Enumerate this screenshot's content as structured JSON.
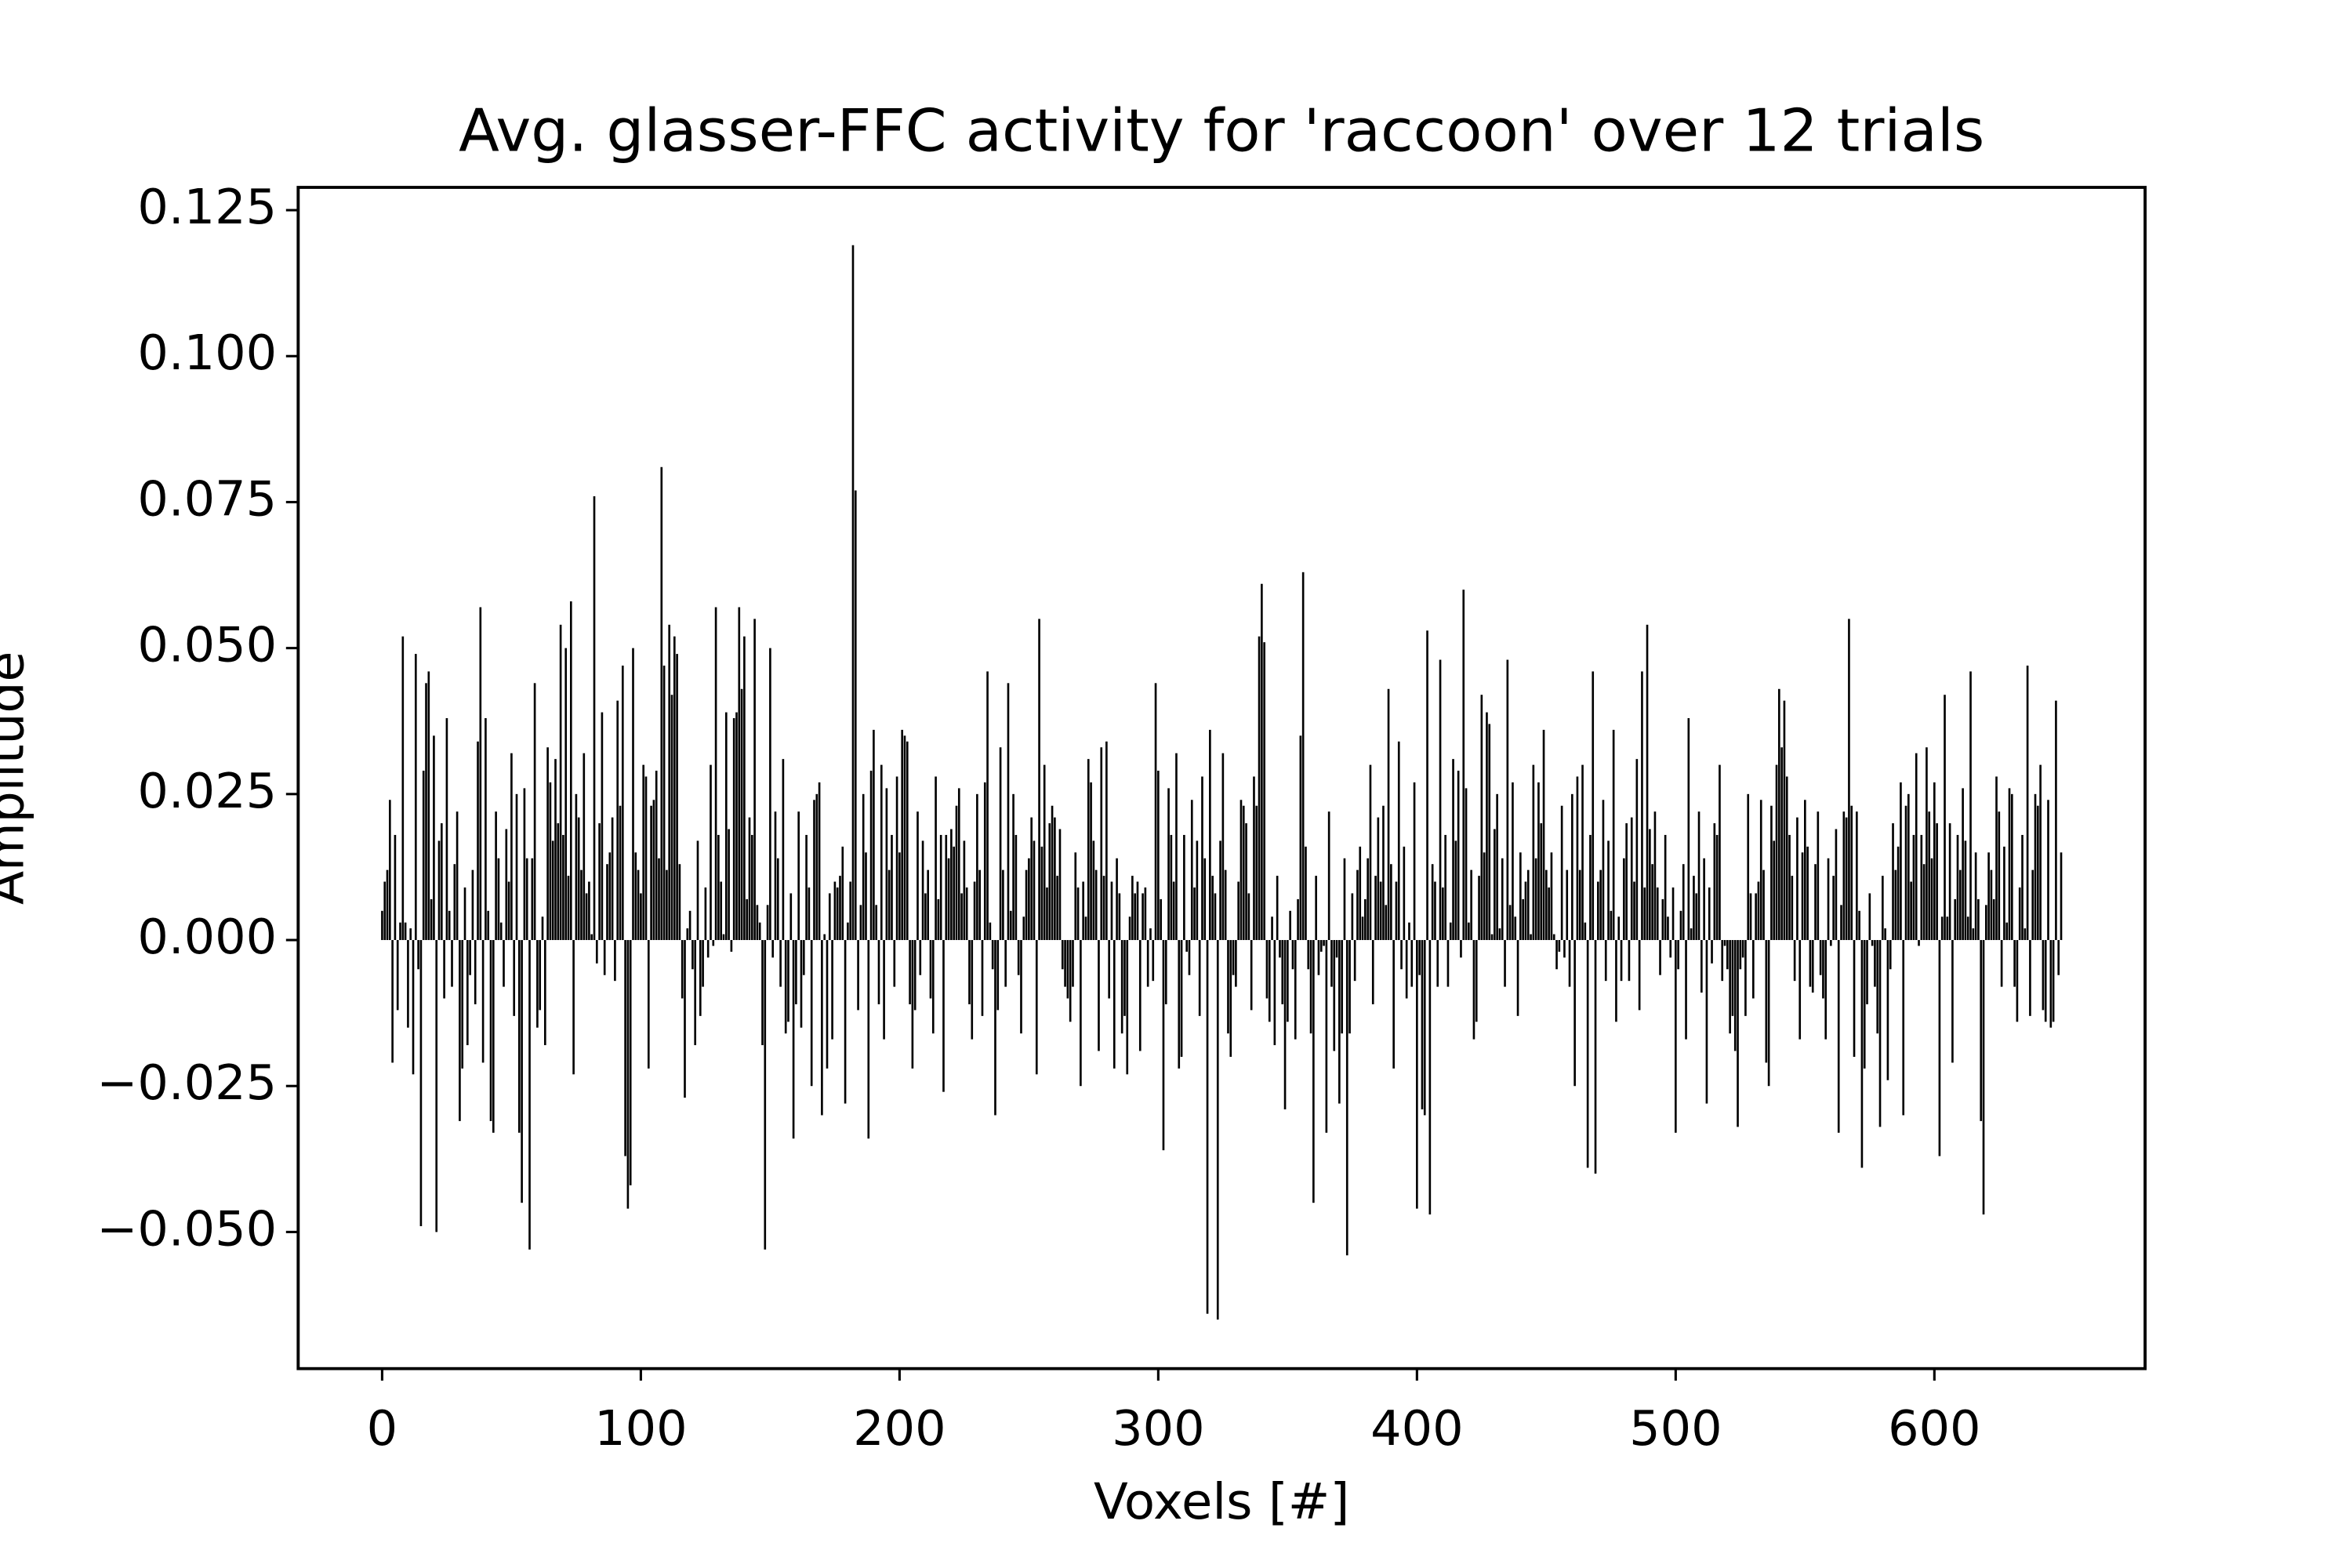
{
  "chart_data": {
    "type": "bar",
    "title": "Avg. glasser-FFC activity for 'raccoon' over 12 trials",
    "xlabel": "Voxels [#]",
    "ylabel": "Amplitude",
    "color": "#000000",
    "xlim": [
      -32.45,
      681.45
    ],
    "ylim": [
      -0.0734,
      0.1289
    ],
    "xticks": [
      0,
      100,
      200,
      300,
      400,
      500,
      600
    ],
    "yticks": [
      {
        "value": -0.05,
        "label": "−0.050"
      },
      {
        "value": -0.025,
        "label": "−0.025"
      },
      {
        "value": 0,
        "label": "0.000"
      },
      {
        "value": 0.025,
        "label": "0.025"
      },
      {
        "value": 0.05,
        "label": "0.050"
      },
      {
        "value": 0.075,
        "label": "0.075"
      },
      {
        "value": 0.1,
        "label": "0.100"
      },
      {
        "value": 0.125,
        "label": "0.125"
      }
    ],
    "x": [
      0,
      1,
      2,
      3,
      4,
      5,
      6,
      7,
      8,
      9,
      10,
      11,
      12,
      13,
      14,
      15,
      16,
      17,
      18,
      19,
      20,
      21,
      22,
      23,
      24,
      25,
      26,
      27,
      28,
      29,
      30,
      31,
      32,
      33,
      34,
      35,
      36,
      37,
      38,
      39,
      40,
      41,
      42,
      43,
      44,
      45,
      46,
      47,
      48,
      49,
      50,
      51,
      52,
      53,
      54,
      55,
      56,
      57,
      58,
      59,
      60,
      61,
      62,
      63,
      64,
      65,
      66,
      67,
      68,
      69,
      70,
      71,
      72,
      73,
      74,
      75,
      76,
      77,
      78,
      79,
      80,
      81,
      82,
      83,
      84,
      85,
      86,
      87,
      88,
      89,
      90,
      91,
      92,
      93,
      94,
      95,
      96,
      97,
      98,
      99,
      100,
      101,
      102,
      103,
      104,
      105,
      106,
      107,
      108,
      109,
      110,
      111,
      112,
      113,
      114,
      115,
      116,
      117,
      118,
      119,
      120,
      121,
      122,
      123,
      124,
      125,
      126,
      127,
      128,
      129,
      130,
      131,
      132,
      133,
      134,
      135,
      136,
      137,
      138,
      139,
      140,
      141,
      142,
      143,
      144,
      145,
      146,
      147,
      148,
      149,
      150,
      151,
      152,
      153,
      154,
      155,
      156,
      157,
      158,
      159,
      160,
      161,
      162,
      163,
      164,
      165,
      166,
      167,
      168,
      169,
      170,
      171,
      172,
      173,
      174,
      175,
      176,
      177,
      178,
      179,
      180,
      181,
      182,
      183,
      184,
      185,
      186,
      187,
      188,
      189,
      190,
      191,
      192,
      193,
      194,
      195,
      196,
      197,
      198,
      199,
      200,
      201,
      202,
      203,
      204,
      205,
      206,
      207,
      208,
      209,
      210,
      211,
      212,
      213,
      214,
      215,
      216,
      217,
      218,
      219,
      220,
      221,
      222,
      223,
      224,
      225,
      226,
      227,
      228,
      229,
      230,
      231,
      232,
      233,
      234,
      235,
      236,
      237,
      238,
      239,
      240,
      241,
      242,
      243,
      244,
      245,
      246,
      247,
      248,
      249,
      250,
      251,
      252,
      253,
      254,
      255,
      256,
      257,
      258,
      259,
      260,
      261,
      262,
      263,
      264,
      265,
      266,
      267,
      268,
      269,
      270,
      271,
      272,
      273,
      274,
      275,
      276,
      277,
      278,
      279,
      280,
      281,
      282,
      283,
      284,
      285,
      286,
      287,
      288,
      289,
      290,
      291,
      292,
      293,
      294,
      295,
      296,
      297,
      298,
      299,
      300,
      301,
      302,
      303,
      304,
      305,
      306,
      307,
      308,
      309,
      310,
      311,
      312,
      313,
      314,
      315,
      316,
      317,
      318,
      319,
      320,
      321,
      322,
      323,
      324,
      325,
      326,
      327,
      328,
      329,
      330,
      331,
      332,
      333,
      334,
      335,
      336,
      337,
      338,
      339,
      340,
      341,
      342,
      343,
      344,
      345,
      346,
      347,
      348,
      349,
      350,
      351,
      352,
      353,
      354,
      355,
      356,
      357,
      358,
      359,
      360,
      361,
      362,
      363,
      364,
      365,
      366,
      367,
      368,
      369,
      370,
      371,
      372,
      373,
      374,
      375,
      376,
      377,
      378,
      379,
      380,
      381,
      382,
      383,
      384,
      385,
      386,
      387,
      388,
      389,
      390,
      391,
      392,
      393,
      394,
      395,
      396,
      397,
      398,
      399,
      400,
      401,
      402,
      403,
      404,
      405,
      406,
      407,
      408,
      409,
      410,
      411,
      412,
      413,
      414,
      415,
      416,
      417,
      418,
      419,
      420,
      421,
      422,
      423,
      424,
      425,
      426,
      427,
      428,
      429,
      430,
      431,
      432,
      433,
      434,
      435,
      436,
      437,
      438,
      439,
      440,
      441,
      442,
      443,
      444,
      445,
      446,
      447,
      448,
      449,
      450,
      451,
      452,
      453,
      454,
      455,
      456,
      457,
      458,
      459,
      460,
      461,
      462,
      463,
      464,
      465,
      466,
      467,
      468,
      469,
      470,
      471,
      472,
      473,
      474,
      475,
      476,
      477,
      478,
      479,
      480,
      481,
      482,
      483,
      484,
      485,
      486,
      487,
      488,
      489,
      490,
      491,
      492,
      493,
      494,
      495,
      496,
      497,
      498,
      499,
      500,
      501,
      502,
      503,
      504,
      505,
      506,
      507,
      508,
      509,
      510,
      511,
      512,
      513,
      514,
      515,
      516,
      517,
      518,
      519,
      520,
      521,
      522,
      523,
      524,
      525,
      526,
      527,
      528,
      529,
      530,
      531,
      532,
      533,
      534,
      535,
      536,
      537,
      538,
      539,
      540,
      541,
      542,
      543,
      544,
      545,
      546,
      547,
      548,
      549,
      550,
      551,
      552,
      553,
      554,
      555,
      556,
      557,
      558,
      559,
      560,
      561,
      562,
      563,
      564,
      565,
      566,
      567,
      568,
      569,
      570,
      571,
      572,
      573,
      574,
      575,
      576,
      577,
      578,
      579,
      580,
      581,
      582,
      583,
      584,
      585,
      586,
      587,
      588,
      589,
      590,
      591,
      592,
      593,
      594,
      595,
      596,
      597,
      598,
      599,
      600,
      601,
      602,
      603,
      604,
      605,
      606,
      607,
      608,
      609,
      610,
      611,
      612,
      613,
      614,
      615,
      616,
      617,
      618,
      619,
      620,
      621,
      622,
      623,
      624,
      625,
      626,
      627,
      628,
      629,
      630,
      631,
      632,
      633,
      634,
      635,
      636,
      637,
      638,
      639,
      640,
      641,
      642,
      643,
      644,
      645,
      646,
      647,
      648,
      649
    ],
    "values": [
      0.005,
      0.01,
      0.012,
      0.024,
      -0.021,
      0.018,
      -0.012,
      0.003,
      0.052,
      0.003,
      -0.015,
      0.002,
      -0.023,
      0.049,
      -0.005,
      -0.049,
      0.029,
      0.044,
      0.046,
      0.007,
      0.035,
      -0.05,
      0.017,
      0.02,
      -0.01,
      0.038,
      0.005,
      -0.008,
      0.013,
      0.022,
      -0.031,
      -0.022,
      0.009,
      -0.018,
      -0.006,
      0.012,
      -0.011,
      0.034,
      0.057,
      -0.021,
      0.038,
      0.005,
      -0.031,
      -0.033,
      0.022,
      0.014,
      0.003,
      -0.008,
      0.019,
      0.01,
      0.032,
      -0.013,
      0.025,
      -0.033,
      -0.045,
      0.026,
      0.014,
      -0.053,
      0.014,
      0.044,
      -0.015,
      -0.012,
      0.004,
      -0.018,
      0.033,
      0.027,
      0.017,
      0.031,
      0.02,
      0.054,
      0.018,
      0.05,
      0.011,
      0.058,
      -0.023,
      0.025,
      0.021,
      0.012,
      0.032,
      0.008,
      0.01,
      0.001,
      0.076,
      -0.004,
      0.02,
      0.039,
      -0.006,
      0.013,
      0.015,
      0.021,
      -0.007,
      0.041,
      0.023,
      0.047,
      -0.037,
      -0.046,
      -0.042,
      0.05,
      0.015,
      0.012,
      0.008,
      0.03,
      0.028,
      -0.022,
      0.023,
      0.024,
      0.029,
      0.014,
      0.081,
      0.047,
      0.012,
      0.054,
      0.042,
      0.052,
      0.049,
      0.013,
      -0.01,
      -0.027,
      0.002,
      0.005,
      -0.005,
      -0.018,
      0.017,
      -0.013,
      -0.008,
      0.009,
      -0.003,
      0.03,
      -0.001,
      0.057,
      0.018,
      0.01,
      0.001,
      0.039,
      0.019,
      -0.002,
      0.038,
      0.039,
      0.057,
      0.043,
      0.052,
      0.007,
      0.021,
      0.018,
      0.055,
      0.006,
      0.003,
      -0.018,
      -0.053,
      0.006,
      0.05,
      -0.003,
      0.022,
      0.014,
      -0.008,
      0.031,
      -0.016,
      -0.014,
      0.008,
      -0.034,
      -0.011,
      0.022,
      -0.015,
      -0.006,
      0.018,
      0.009,
      -0.025,
      0.024,
      0.025,
      0.027,
      -0.03,
      0.001,
      -0.022,
      0.008,
      -0.017,
      0.01,
      0.009,
      0.011,
      0.016,
      -0.028,
      0.003,
      0.01,
      0.119,
      0.077,
      -0.012,
      0.006,
      0.025,
      0.015,
      -0.034,
      0.029,
      0.036,
      0.006,
      -0.011,
      0.03,
      -0.017,
      0.026,
      0.012,
      0.018,
      -0.008,
      0.028,
      0.015,
      0.036,
      0.035,
      0.034,
      -0.011,
      -0.022,
      -0.012,
      0.022,
      -0.006,
      0.017,
      0.008,
      0.012,
      -0.01,
      -0.016,
      0.028,
      0.007,
      0.018,
      -0.026,
      0.018,
      0.014,
      0.019,
      0.016,
      0.023,
      0.026,
      0.008,
      0.017,
      0.009,
      -0.011,
      -0.017,
      0.01,
      0.025,
      0.012,
      -0.013,
      0.027,
      0.046,
      0.003,
      -0.005,
      -0.03,
      -0.012,
      0.033,
      0.012,
      -0.008,
      0.044,
      0.005,
      0.025,
      0.018,
      -0.006,
      -0.016,
      0.004,
      0.012,
      0.014,
      0.021,
      0.017,
      -0.023,
      0.055,
      0.016,
      0.03,
      0.009,
      0.02,
      0.023,
      0.021,
      0.011,
      0.019,
      -0.005,
      -0.008,
      -0.01,
      -0.014,
      -0.008,
      0.015,
      0.009,
      -0.025,
      0.01,
      0.004,
      0.031,
      0.027,
      0.017,
      0.012,
      -0.019,
      0.033,
      0.011,
      0.034,
      -0.01,
      0.01,
      -0.022,
      0.014,
      0.008,
      -0.016,
      -0.013,
      -0.023,
      0.004,
      0.011,
      0.008,
      0.01,
      -0.019,
      0.008,
      0.009,
      -0.008,
      0.002,
      -0.007,
      0.044,
      0.029,
      0.007,
      -0.036,
      -0.011,
      0.026,
      0.018,
      0.01,
      0.032,
      -0.022,
      -0.02,
      0.018,
      -0.002,
      -0.006,
      0.024,
      0.009,
      0.017,
      -0.013,
      0.028,
      0.014,
      -0.064,
      0.036,
      0.011,
      0.008,
      -0.065,
      0.017,
      0.032,
      0.012,
      -0.016,
      -0.02,
      -0.006,
      -0.008,
      0.01,
      0.024,
      0.023,
      0.02,
      0.008,
      -0.012,
      0.028,
      0.023,
      0.052,
      0.061,
      0.051,
      -0.01,
      -0.014,
      0.004,
      -0.018,
      0.011,
      -0.003,
      -0.011,
      -0.029,
      -0.014,
      0.005,
      -0.005,
      -0.017,
      0.007,
      0.035,
      0.063,
      0.016,
      -0.005,
      -0.016,
      -0.045,
      0.011,
      -0.006,
      -0.002,
      -0.001,
      -0.033,
      0.022,
      -0.008,
      -0.019,
      -0.003,
      -0.028,
      -0.016,
      0.014,
      -0.054,
      -0.016,
      0.008,
      -0.007,
      0.012,
      0.016,
      0.004,
      0.007,
      0.014,
      0.03,
      -0.011,
      0.011,
      0.021,
      0.01,
      0.023,
      0.006,
      0.043,
      0.013,
      -0.022,
      0.01,
      0.034,
      -0.005,
      0.016,
      -0.01,
      0.003,
      -0.008,
      0.027,
      -0.046,
      -0.006,
      -0.029,
      -0.03,
      0.053,
      -0.047,
      0.013,
      0.01,
      -0.008,
      0.048,
      0.009,
      0.018,
      -0.008,
      0.003,
      0.031,
      0.017,
      0.029,
      -0.003,
      0.06,
      0.026,
      0.003,
      0.012,
      -0.017,
      -0.014,
      0.011,
      0.042,
      0.015,
      0.039,
      0.037,
      0.001,
      0.019,
      0.025,
      0.002,
      0.014,
      -0.008,
      0.048,
      0.006,
      0.027,
      0.004,
      -0.013,
      0.015,
      0.007,
      0.01,
      0.012,
      0.001,
      0.03,
      0.014,
      0.027,
      0.02,
      0.036,
      0.012,
      0.009,
      0.015,
      0.001,
      -0.005,
      -0.002,
      0.023,
      -0.003,
      0.012,
      -0.008,
      0.025,
      -0.025,
      0.028,
      0.012,
      0.03,
      0.003,
      -0.039,
      0.018,
      0.046,
      -0.04,
      0.01,
      0.012,
      0.024,
      -0.007,
      0.017,
      0.005,
      0.036,
      -0.014,
      0.004,
      -0.007,
      0.014,
      0.02,
      -0.007,
      0.021,
      0.01,
      0.031,
      -0.012,
      0.046,
      0.009,
      0.054,
      0.019,
      0.013,
      0.022,
      0.009,
      -0.006,
      0.007,
      0.018,
      0.004,
      -0.003,
      0.009,
      -0.033,
      -0.005,
      0.005,
      0.013,
      -0.017,
      0.038,
      0.002,
      0.011,
      0.008,
      0.022,
      -0.009,
      0.014,
      -0.028,
      0.009,
      -0.004,
      0.02,
      0.018,
      0.03,
      -0.007,
      -0.001,
      -0.005,
      -0.016,
      -0.013,
      -0.019,
      -0.032,
      -0.005,
      -0.003,
      -0.013,
      0.025,
      0.008,
      -0.01,
      0.008,
      0.01,
      0.024,
      0.012,
      -0.021,
      -0.025,
      0.023,
      0.017,
      0.03,
      0.043,
      0.033,
      0.041,
      0.028,
      0.018,
      0.011,
      -0.007,
      0.021,
      -0.017,
      0.015,
      0.024,
      0.016,
      -0.008,
      -0.009,
      0.013,
      0.022,
      -0.006,
      -0.01,
      -0.017,
      0.014,
      -0.001,
      0.011,
      0.019,
      -0.033,
      0.006,
      0.022,
      0.021,
      0.055,
      0.023,
      -0.02,
      0.022,
      0.005,
      -0.039,
      -0.022,
      -0.011,
      0.008,
      -0.001,
      -0.008,
      -0.016,
      -0.032,
      0.011,
      0.002,
      -0.024,
      -0.005,
      0.02,
      0.012,
      0.016,
      0.027,
      -0.03,
      0.023,
      0.025,
      0.01,
      0.018,
      0.032,
      -0.001,
      0.018,
      0.013,
      0.033,
      0.022,
      0.014,
      0.027,
      0.02,
      -0.037,
      0.004,
      0.042,
      0.004,
      0.02,
      -0.021,
      0.007,
      0.018,
      0.012,
      0.026,
      0.017,
      0.004,
      0.046,
      0.002,
      0.015,
      0.007,
      -0.031,
      -0.047,
      0.006,
      0.015,
      0.012,
      0.007,
      0.028,
      0.022,
      -0.008,
      0.016,
      0.003,
      0.026,
      0.025,
      -0.008,
      -0.014,
      0.009,
      0.018,
      0.002,
      0.047,
      -0.013,
      0.012,
      0.025,
      0.023,
      0.03,
      -0.012,
      -0.014,
      0.024,
      -0.015,
      -0.014,
      0.041,
      -0.006,
      0.015
    ]
  }
}
